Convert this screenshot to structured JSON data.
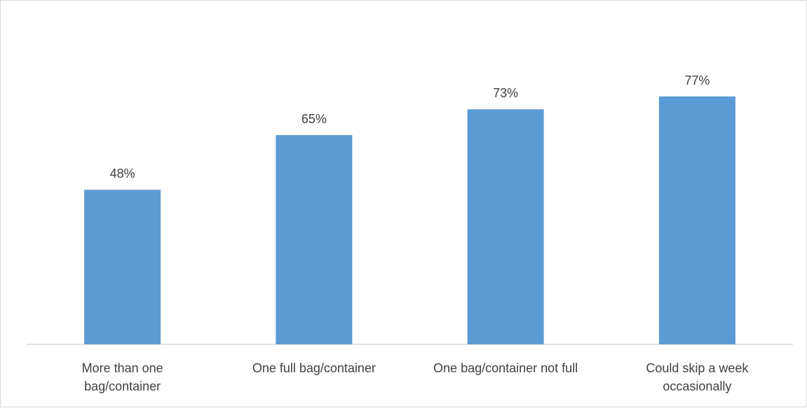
{
  "chart_data": {
    "type": "bar",
    "categories": [
      [
        "More than one",
        "bag/container"
      ],
      [
        "One full bag/container"
      ],
      [
        "One bag/container not full"
      ],
      [
        "Could skip a week",
        "occasionally"
      ]
    ],
    "values": [
      48,
      65,
      73,
      77
    ],
    "value_labels": [
      "48%",
      "65%",
      "73%",
      "77%"
    ],
    "title": "",
    "xlabel": "",
    "ylabel": "",
    "ylim": [
      0,
      100
    ],
    "grid": false,
    "legend": "none",
    "colors": {
      "bar": "#5b9bd5",
      "axis": "#d9d9d9",
      "text": "#404040"
    }
  }
}
